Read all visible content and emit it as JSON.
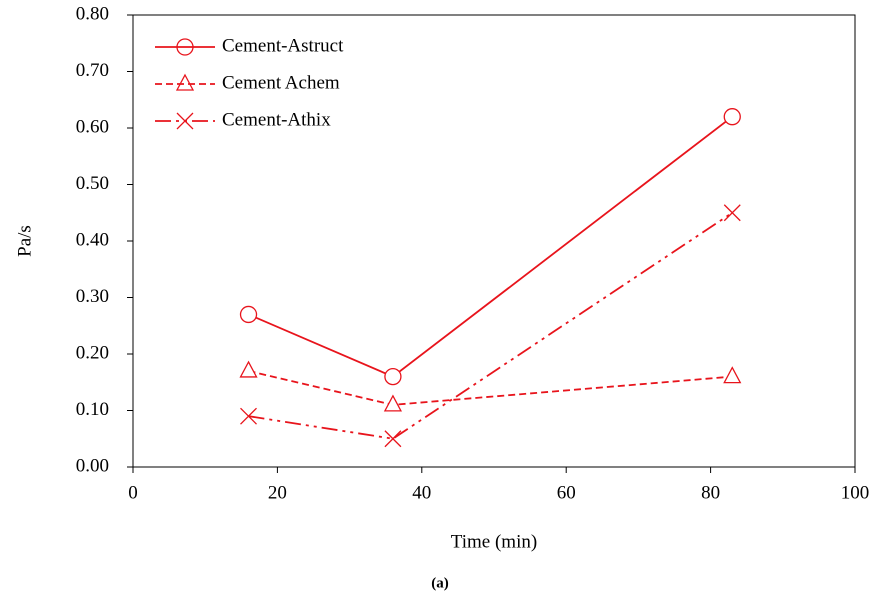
{
  "chart_data": {
    "type": "line",
    "x_label": "Time (min)",
    "y_label": "Pa/s",
    "caption": "(a)",
    "x": [
      16,
      36,
      83
    ],
    "series": [
      {
        "name": "Cement-Astruct",
        "color": "#e8141c",
        "dash": "solid",
        "marker": "circle",
        "values": [
          0.27,
          0.16,
          0.62
        ]
      },
      {
        "name": "Cement Achem",
        "color": "#e8141c",
        "dash": "dashed",
        "marker": "triangle",
        "values": [
          0.17,
          0.11,
          0.16
        ]
      },
      {
        "name": "Cement-Athix",
        "color": "#e8141c",
        "dash": "dash-dot-dot",
        "marker": "x",
        "values": [
          0.09,
          0.05,
          0.45
        ]
      }
    ],
    "xlim": [
      0,
      100
    ],
    "xticks": [
      0,
      20,
      40,
      60,
      80,
      100
    ],
    "ylim": [
      0,
      0.8
    ],
    "yticks": [
      {
        "value": 0,
        "label": "0.00"
      },
      {
        "value": 0.1,
        "label": "0.10"
      },
      {
        "value": 0.2,
        "label": "0.20"
      },
      {
        "value": 0.3,
        "label": "0.30"
      },
      {
        "value": 0.4,
        "label": "0.40"
      },
      {
        "value": 0.5,
        "label": "0.50"
      },
      {
        "value": 0.6,
        "label": "0.60"
      },
      {
        "value": 0.7,
        "label": "0.70"
      },
      {
        "value": 0.8,
        "label": "0.80"
      }
    ],
    "grid": false,
    "legend": "top-left"
  }
}
